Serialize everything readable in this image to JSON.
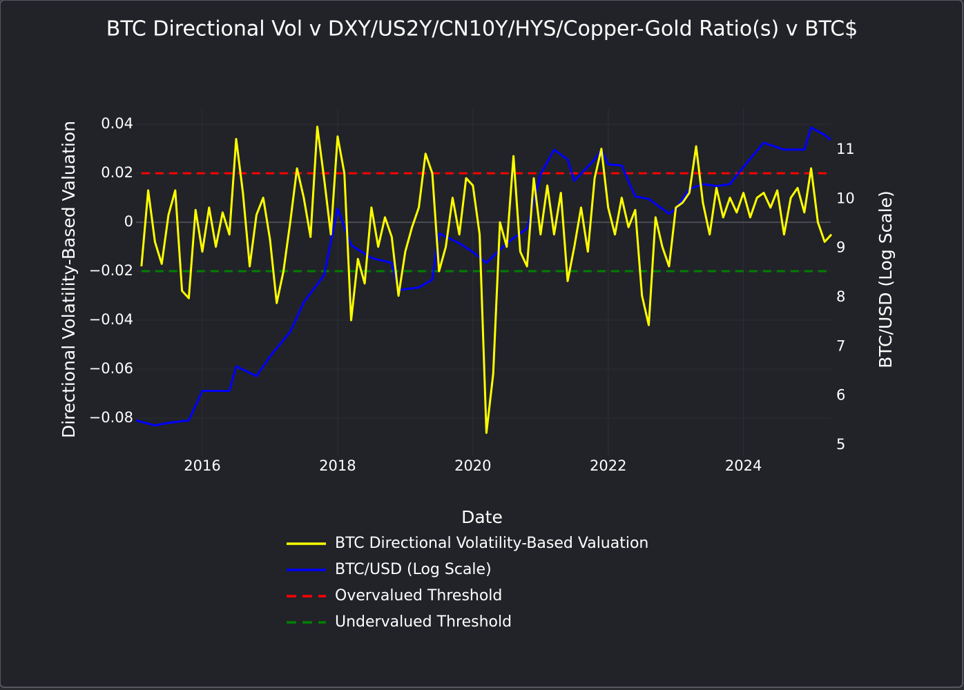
{
  "chart_data": {
    "type": "line",
    "title": "BTC Directional Vol v DXY/US2Y/CN10Y/HYS/Copper-Gold Ratio(s) v BTC$",
    "x_label": "Date",
    "y_label": "Directional Volatility-Based Valuation",
    "y2_label": "BTC/USD (Log Scale)",
    "xlim": [
      2015.02,
      2025.29
    ],
    "xticks": [
      2016,
      2018,
      2020,
      2022,
      2024
    ],
    "ylim": [
      -0.0952,
      0.0465
    ],
    "yticks": [
      {
        "value": -0.08,
        "label": "−0.08"
      },
      {
        "value": -0.06,
        "label": "−0.06"
      },
      {
        "value": -0.04,
        "label": "−0.04"
      },
      {
        "value": -0.02,
        "label": "−0.02"
      },
      0,
      0.02,
      0.04
    ],
    "y2lim": [
      4.79,
      11.84
    ],
    "y2ticks": [
      5,
      6,
      7,
      8,
      9,
      10,
      11
    ],
    "grid": true,
    "legend": "bottom",
    "series": [
      {
        "name": "BTC Directional Volatility-Based Valuation",
        "color": "#ffff00",
        "x": [
          2015.1,
          2015.2,
          2015.3,
          2015.4,
          2015.5,
          2015.6,
          2015.7,
          2015.8,
          2015.9,
          2016.0,
          2016.1,
          2016.2,
          2016.3,
          2016.4,
          2016.5,
          2016.6,
          2016.7,
          2016.8,
          2016.9,
          2017.0,
          2017.1,
          2017.2,
          2017.3,
          2017.4,
          2017.5,
          2017.6,
          2017.7,
          2017.8,
          2017.9,
          2018.0,
          2018.1,
          2018.2,
          2018.3,
          2018.4,
          2018.5,
          2018.6,
          2018.7,
          2018.8,
          2018.9,
          2019.0,
          2019.1,
          2019.2,
          2019.3,
          2019.4,
          2019.5,
          2019.6,
          2019.7,
          2019.8,
          2019.9,
          2020.0,
          2020.1,
          2020.2,
          2020.3,
          2020.4,
          2020.5,
          2020.6,
          2020.7,
          2020.8,
          2020.9,
          2021.0,
          2021.1,
          2021.2,
          2021.3,
          2021.4,
          2021.5,
          2021.6,
          2021.7,
          2021.8,
          2021.9,
          2022.0,
          2022.1,
          2022.2,
          2022.3,
          2022.4,
          2022.5,
          2022.6,
          2022.7,
          2022.8,
          2022.9,
          2023.0,
          2023.1,
          2023.2,
          2023.3,
          2023.4,
          2023.5,
          2023.6,
          2023.7,
          2023.8,
          2023.9,
          2024.0,
          2024.1,
          2024.2,
          2024.3,
          2024.4,
          2024.5,
          2024.6,
          2024.7,
          2024.8,
          2024.9,
          2025.0,
          2025.1,
          2025.2,
          2025.3
        ],
        "values": [
          -0.018,
          0.013,
          -0.008,
          -0.017,
          0.003,
          0.013,
          -0.028,
          -0.031,
          0.005,
          -0.012,
          0.006,
          -0.01,
          0.004,
          -0.005,
          0.034,
          0.012,
          -0.018,
          0.003,
          0.01,
          -0.007,
          -0.033,
          -0.02,
          0.0,
          0.022,
          0.01,
          -0.006,
          0.039,
          0.018,
          -0.005,
          0.035,
          0.02,
          -0.04,
          -0.015,
          -0.025,
          0.006,
          -0.01,
          0.002,
          -0.006,
          -0.03,
          -0.012,
          -0.002,
          0.006,
          0.028,
          0.02,
          -0.02,
          -0.01,
          0.01,
          -0.005,
          0.018,
          0.015,
          -0.005,
          -0.086,
          -0.062,
          0.0,
          -0.01,
          0.027,
          -0.012,
          -0.018,
          0.018,
          -0.005,
          0.015,
          -0.005,
          0.012,
          -0.024,
          -0.01,
          0.006,
          -0.012,
          0.018,
          0.03,
          0.006,
          -0.005,
          0.01,
          -0.002,
          0.005,
          -0.03,
          -0.042,
          0.002,
          -0.01,
          -0.018,
          0.006,
          0.008,
          0.012,
          0.031,
          0.008,
          -0.005,
          0.014,
          0.002,
          0.01,
          0.004,
          0.012,
          0.002,
          0.01,
          0.012,
          0.006,
          0.013,
          -0.005,
          0.01,
          0.014,
          0.004,
          0.022,
          0.0,
          -0.008,
          -0.005
        ]
      },
      {
        "name": "BTC/USD (Log Scale)",
        "color": "#0000ff",
        "axis": "y2",
        "x": [
          2015.02,
          2015.3,
          2015.5,
          2015.8,
          2016.0,
          2016.4,
          2016.5,
          2016.8,
          2017.0,
          2017.3,
          2017.5,
          2017.8,
          2018.0,
          2018.2,
          2018.5,
          2018.8,
          2018.9,
          2019.2,
          2019.4,
          2019.5,
          2019.8,
          2020.0,
          2020.2,
          2020.5,
          2020.8,
          2021.0,
          2021.2,
          2021.4,
          2021.5,
          2021.8,
          2021.9,
          2022.0,
          2022.2,
          2022.4,
          2022.6,
          2022.9,
          2023.0,
          2023.2,
          2023.4,
          2023.6,
          2023.8,
          2024.0,
          2024.3,
          2024.6,
          2024.9,
          2025.0,
          2025.2,
          2025.29
        ],
        "values": [
          5.5,
          5.4,
          5.45,
          5.5,
          6.1,
          6.1,
          6.6,
          6.4,
          6.8,
          7.3,
          7.9,
          8.45,
          9.8,
          9.06,
          8.8,
          8.7,
          8.15,
          8.2,
          8.36,
          9.3,
          9.1,
          8.92,
          8.7,
          9.1,
          9.4,
          10.5,
          11.0,
          10.8,
          10.37,
          10.8,
          11.0,
          10.7,
          10.68,
          10.05,
          10.0,
          9.7,
          9.8,
          10.2,
          10.3,
          10.26,
          10.3,
          10.65,
          11.14,
          11.0,
          11.0,
          11.45,
          11.3,
          11.2
        ]
      },
      {
        "name": "Overvalued Threshold",
        "color": "#ff0000",
        "dash": true,
        "value": 0.02
      },
      {
        "name": "Undervalued Threshold",
        "color": "#008000",
        "dash": true,
        "value": -0.02
      }
    ]
  }
}
